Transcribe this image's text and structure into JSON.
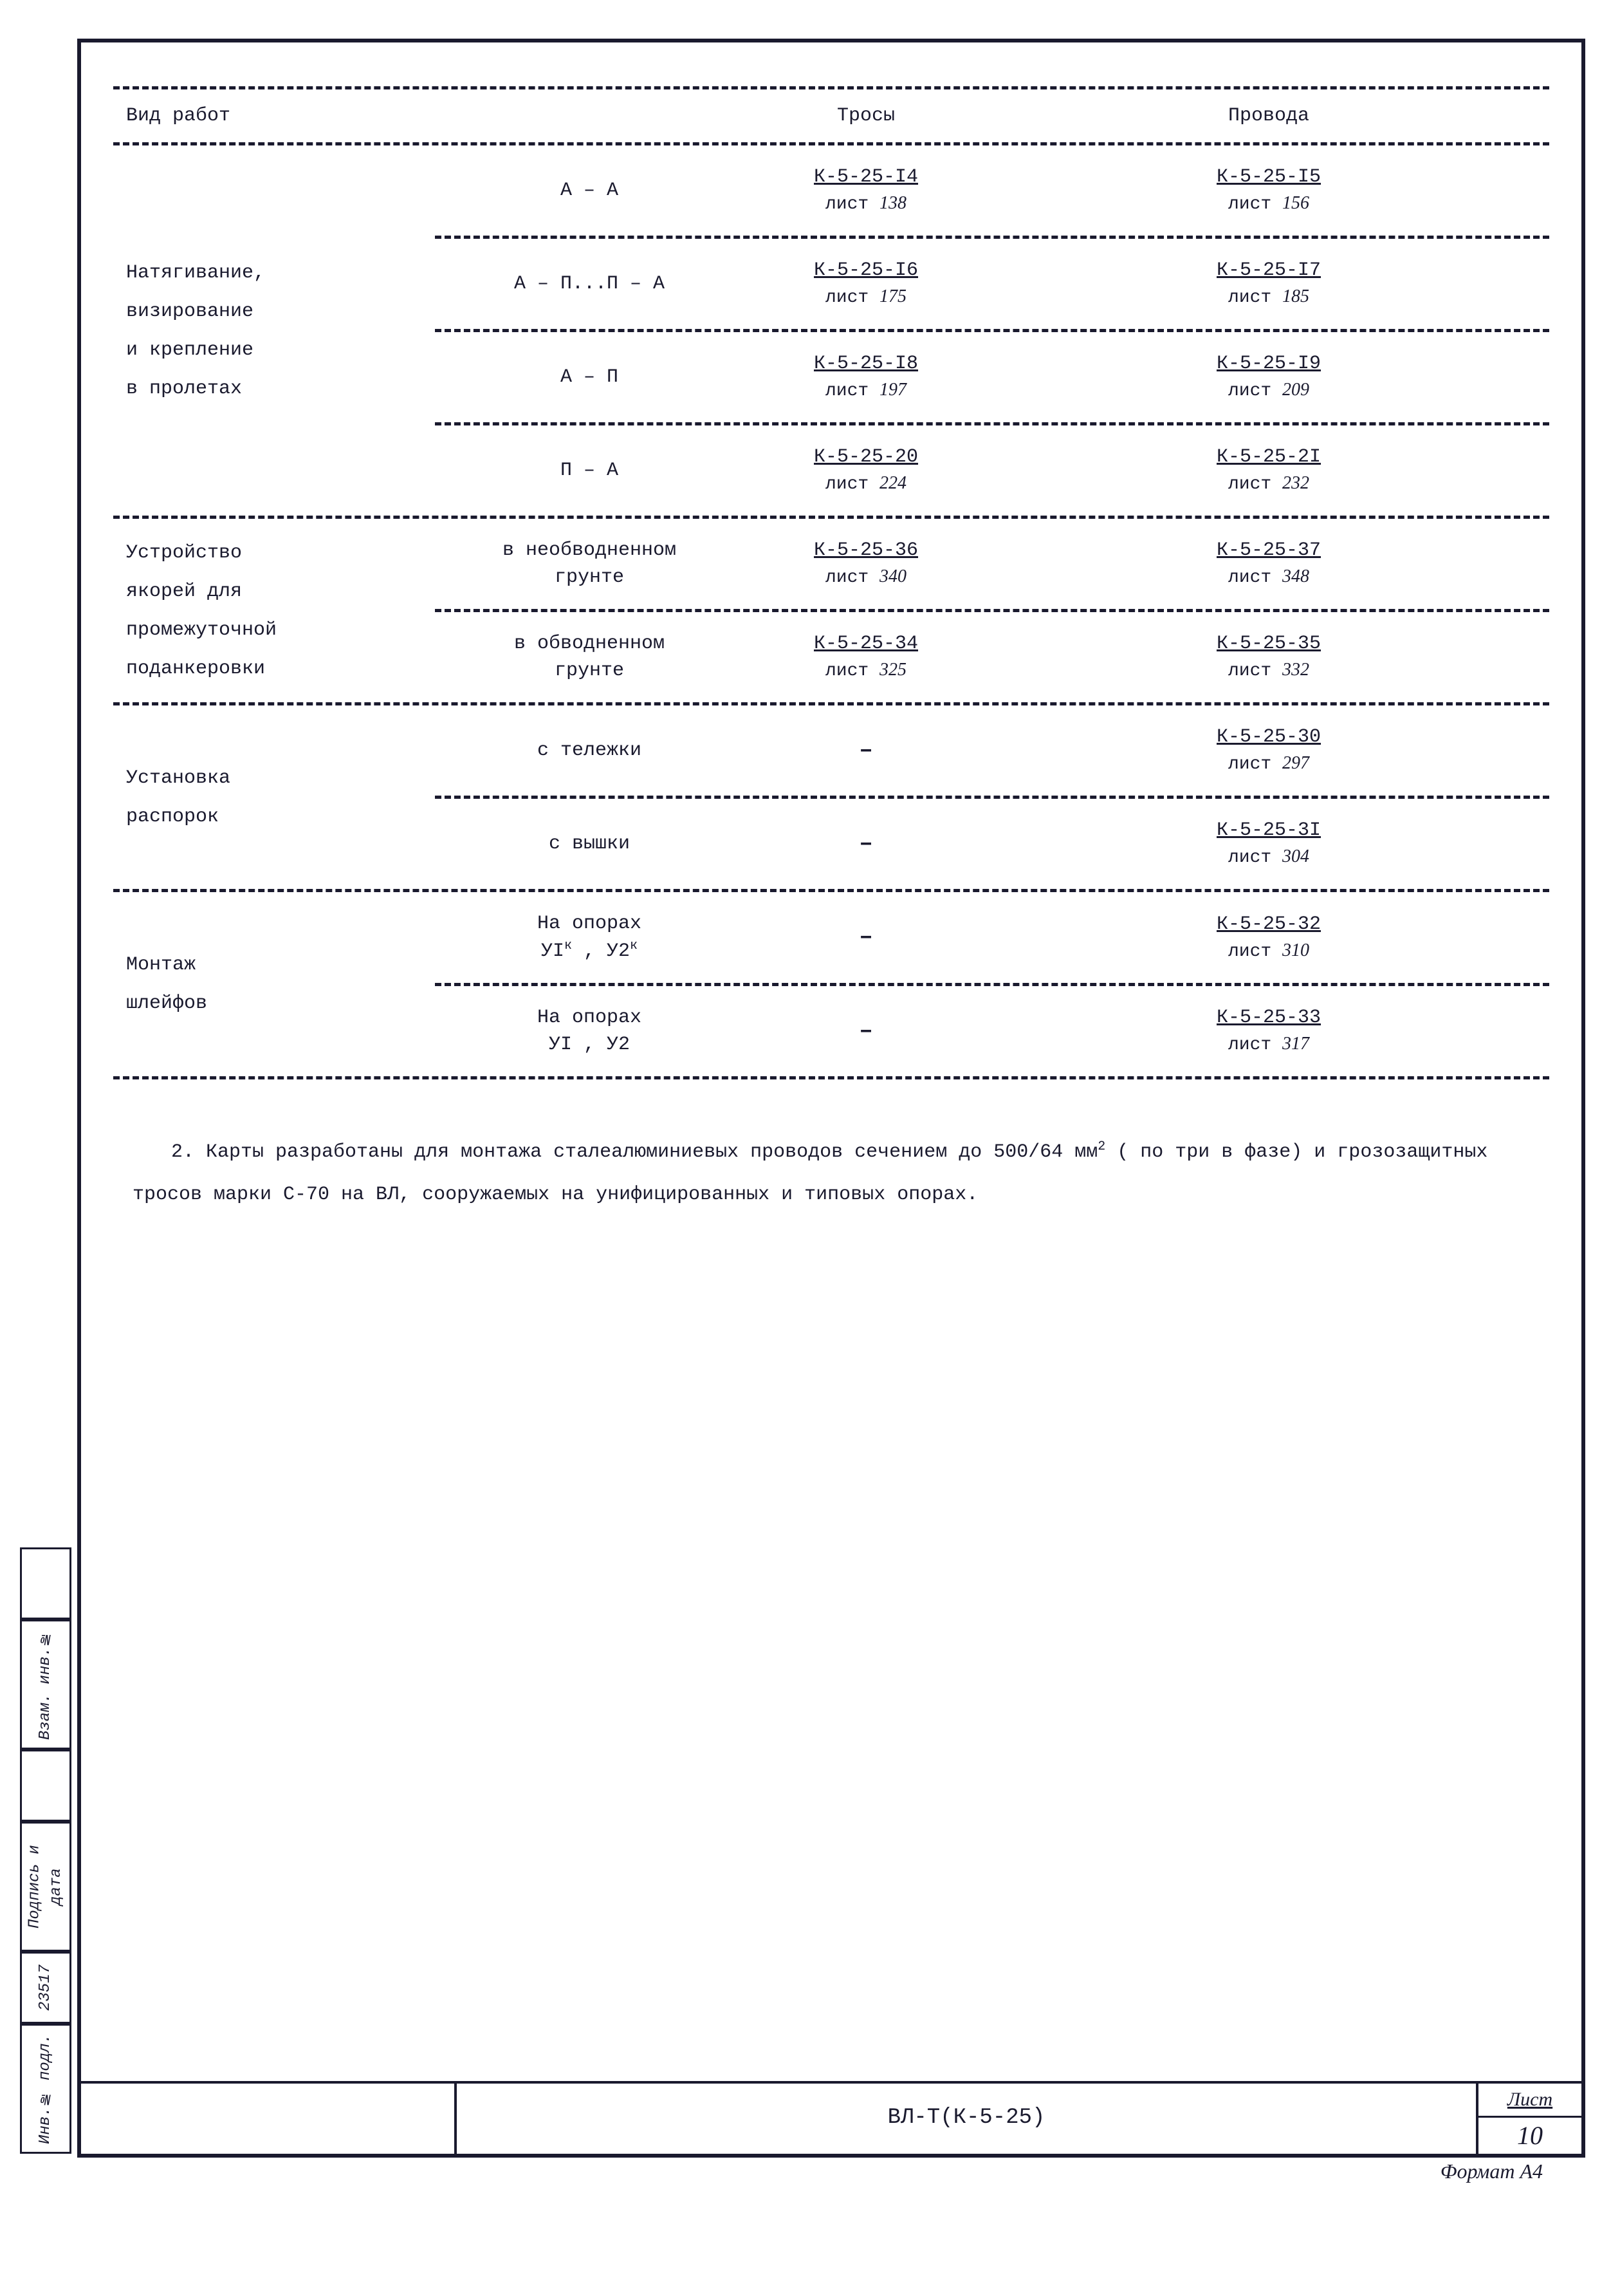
{
  "headers": {
    "work_type": "Вид работ",
    "trosy": "Тросы",
    "provoda": "Провода"
  },
  "sections": [
    {
      "label": "Натягивание,\nвизирование\nи крепление\nв пролетах",
      "rows": [
        {
          "sub": "А – А",
          "trosy_code": "К-5-25-I4",
          "trosy_sheet": "лист 138",
          "prov_code": "К-5-25-I5",
          "prov_sheet": "лист 156"
        },
        {
          "sub": "А – П...П – А",
          "trosy_code": "К-5-25-I6",
          "trosy_sheet": "лист 175",
          "prov_code": "К-5-25-I7",
          "prov_sheet": "лист 185"
        },
        {
          "sub": "А – П",
          "trosy_code": "К-5-25-I8",
          "trosy_sheet": "лист 197",
          "prov_code": "К-5-25-I9",
          "prov_sheet": "лист 209"
        },
        {
          "sub": "П – А",
          "trosy_code": "К-5-25-20",
          "trosy_sheet": "лист 224",
          "prov_code": "К-5-25-2I",
          "prov_sheet": "лист 232"
        }
      ]
    },
    {
      "label": "Устройство\nякорей для\nпромежуточной\nподанкеровки",
      "rows": [
        {
          "sub": "в необводненном\nгрунте",
          "trosy_code": "К-5-25-36",
          "trosy_sheet": "лист 340",
          "prov_code": "К-5-25-37",
          "prov_sheet": "лист 348"
        },
        {
          "sub": "в обводненном\nгрунте",
          "trosy_code": "К-5-25-34",
          "trosy_sheet": "лист 325",
          "prov_code": "К-5-25-35",
          "prov_sheet": "лист 332"
        }
      ]
    },
    {
      "label": "Установка\nраспорок",
      "rows": [
        {
          "sub": "с тележки",
          "trosy_dash": "–",
          "prov_code": "К-5-25-30",
          "prov_sheet": "лист 297"
        },
        {
          "sub": "с вышки",
          "trosy_dash": "–",
          "prov_code": "К-5-25-3I",
          "prov_sheet": "лист 304"
        }
      ]
    },
    {
      "label": "Монтаж\nшлейфов",
      "rows": [
        {
          "sub_html": "На опорах<br>УI<sup>к</sup> , У2<sup>к</sup>",
          "trosy_dash": "–",
          "prov_code": "К-5-25-32",
          "prov_sheet": "лист 310"
        },
        {
          "sub_html": "На опорах<br>УI , У2",
          "trosy_dash": "–",
          "prov_code": "К-5-25-33",
          "prov_sheet": "лист 317"
        }
      ]
    }
  ],
  "footer_note_html": "2. Карты разработаны для монтажа сталеалюминиевых проводов сечением до 500/64 мм<sup>2</sup> ( по три в фазе) и грозозащитных тросов марки С-70 на ВЛ, сооружаемых на унифицированных и типовых опорах.",
  "title_block": {
    "doc": "ВЛ-Т(К-5-25)",
    "sheet_label": "Лист",
    "sheet_num": "10"
  },
  "format_note": "Формат А4",
  "side_stamps": [
    "Инв.№ подл.",
    "23517",
    "Подпись и дата",
    "",
    "Взам. инв.№",
    ""
  ]
}
